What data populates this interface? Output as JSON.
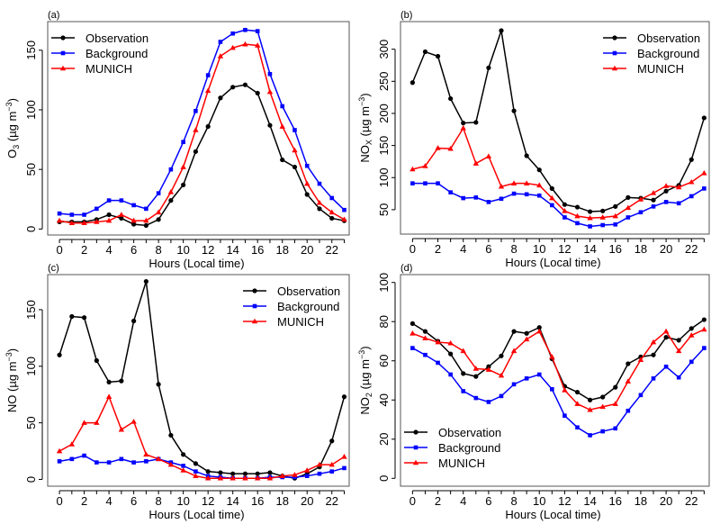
{
  "chart_data": [
    {
      "type": "line",
      "panel_label": "(a)",
      "xlabel": "Hours (Local time)",
      "ylabel": {
        "base": "O",
        "sub": "3",
        "unit": " (µg m",
        "exp": "−3",
        "close": ")"
      },
      "x": [
        0,
        1,
        2,
        3,
        4,
        5,
        6,
        7,
        8,
        9,
        10,
        11,
        12,
        13,
        14,
        15,
        16,
        17,
        18,
        19,
        20,
        21,
        22,
        23
      ],
      "x_tick_labels": [
        0,
        2,
        4,
        6,
        8,
        10,
        12,
        14,
        16,
        18,
        20,
        22
      ],
      "y_ticks": [
        0,
        50,
        100,
        150
      ],
      "xlim": [
        -0.95,
        23.4
      ],
      "ylim": [
        -5,
        174
      ],
      "legend_position": "top-left",
      "series": [
        {
          "name": "Observation",
          "color": "#000000",
          "marker": "circle",
          "values": [
            6,
            6,
            6,
            8,
            12,
            9,
            4,
            3,
            8,
            24,
            37,
            65,
            86,
            110,
            119,
            121,
            114,
            87,
            58,
            52,
            29,
            17,
            9,
            7
          ]
        },
        {
          "name": "Background",
          "color": "#0000ff",
          "marker": "square",
          "values": [
            13,
            12,
            12,
            17,
            24,
            24,
            20,
            17,
            30,
            50,
            73,
            99,
            129,
            157,
            164,
            167,
            166,
            130,
            103,
            83,
            53,
            38,
            26,
            16
          ]
        },
        {
          "name": "MUNICH",
          "color": "#ff0000",
          "marker": "triangle",
          "values": [
            7,
            5,
            5,
            6,
            7,
            12,
            7,
            7,
            14,
            31,
            52,
            83,
            116,
            145,
            152,
            155,
            154,
            115,
            86,
            66,
            38,
            22,
            14,
            8
          ]
        }
      ]
    },
    {
      "type": "line",
      "panel_label": "(b)",
      "xlabel": "Hours (Local time)",
      "ylabel": {
        "base": "NO",
        "sub": "X",
        "unit": " (µg m",
        "exp": "−3",
        "close": ")"
      },
      "x": [
        0,
        1,
        2,
        3,
        4,
        5,
        6,
        7,
        8,
        9,
        10,
        11,
        12,
        13,
        14,
        15,
        16,
        17,
        18,
        19,
        20,
        21,
        22,
        23
      ],
      "x_tick_labels": [
        0,
        2,
        4,
        6,
        8,
        10,
        12,
        14,
        16,
        18,
        20,
        22
      ],
      "y_ticks": [
        50,
        100,
        150,
        200,
        250,
        300
      ],
      "xlim": [
        -0.95,
        23.4
      ],
      "ylim": [
        12,
        343
      ],
      "legend_position": "top-right",
      "series": [
        {
          "name": "Observation",
          "color": "#000000",
          "marker": "circle",
          "values": [
            248,
            296,
            289,
            223,
            185,
            186,
            271,
            329,
            204,
            134,
            112,
            83,
            58,
            54,
            47,
            48,
            55,
            69,
            68,
            65,
            79,
            88,
            128,
            193
          ]
        },
        {
          "name": "Background",
          "color": "#0000ff",
          "marker": "square",
          "values": [
            91,
            91,
            91,
            77,
            68,
            69,
            62,
            67,
            75,
            74,
            72,
            57,
            38,
            29,
            24,
            26,
            27,
            38,
            46,
            55,
            62,
            60,
            71,
            83
          ]
        },
        {
          "name": "MUNICH",
          "color": "#ff0000",
          "marker": "triangle",
          "values": [
            113,
            118,
            146,
            145,
            177,
            122,
            133,
            86,
            91,
            91,
            88,
            68,
            48,
            40,
            37,
            38,
            40,
            53,
            66,
            76,
            87,
            85,
            93,
            107
          ]
        }
      ]
    },
    {
      "type": "line",
      "panel_label": "(c)",
      "xlabel": "Hours (Local time)",
      "ylabel": {
        "base": "NO",
        "sub": "",
        "unit": " (µg m",
        "exp": "−3",
        "close": ")"
      },
      "x": [
        0,
        1,
        2,
        3,
        4,
        5,
        6,
        7,
        8,
        9,
        10,
        11,
        12,
        13,
        14,
        15,
        16,
        17,
        18,
        19,
        20,
        21,
        22,
        23
      ],
      "x_tick_labels": [
        0,
        2,
        4,
        6,
        8,
        10,
        12,
        14,
        16,
        18,
        20,
        22
      ],
      "y_ticks": [
        0,
        50,
        100,
        150
      ],
      "xlim": [
        -0.95,
        23.4
      ],
      "ylim": [
        -6,
        181
      ],
      "legend_position": "top-right",
      "series": [
        {
          "name": "Observation",
          "color": "#000000",
          "marker": "circle",
          "values": [
            110,
            144,
            143,
            105,
            86,
            87,
            140,
            175,
            84,
            39,
            22,
            14,
            7,
            6,
            5,
            5,
            5,
            6,
            3,
            1,
            5,
            11,
            34,
            73
          ]
        },
        {
          "name": "Background",
          "color": "#0000ff",
          "marker": "square",
          "values": [
            16,
            18,
            21,
            15,
            15,
            18,
            15,
            16,
            18,
            15,
            12,
            7,
            3,
            2,
            1,
            1,
            1,
            2,
            2,
            2,
            3,
            5,
            7,
            10
          ]
        },
        {
          "name": "MUNICH",
          "color": "#ff0000",
          "marker": "triangle",
          "values": [
            25,
            31,
            50,
            50,
            73,
            44,
            51,
            22,
            18,
            13,
            8,
            3,
            1,
            1,
            1,
            1,
            1,
            1,
            3,
            4,
            8,
            13,
            13,
            20
          ]
        }
      ]
    },
    {
      "type": "line",
      "panel_label": "(d)",
      "xlabel": "Hours (Local time)",
      "ylabel": {
        "base": "NO",
        "sub": "2",
        "unit": " (µg m",
        "exp": "−3",
        "close": ")"
      },
      "x": [
        0,
        1,
        2,
        3,
        4,
        5,
        6,
        7,
        8,
        9,
        10,
        11,
        12,
        13,
        14,
        15,
        16,
        17,
        18,
        19,
        20,
        21,
        22,
        23
      ],
      "x_tick_labels": [
        0,
        2,
        4,
        6,
        8,
        10,
        12,
        14,
        16,
        18,
        20,
        22
      ],
      "y_ticks": [
        0,
        20,
        40,
        60,
        80,
        100
      ],
      "xlim": [
        -0.95,
        23.4
      ],
      "ylim": [
        -4,
        104
      ],
      "legend_position": "bottom-left",
      "series": [
        {
          "name": "Observation",
          "color": "#000000",
          "marker": "circle",
          "values": [
            79,
            75,
            70,
            63.5,
            53.5,
            52,
            57,
            62.5,
            75,
            74,
            77,
            61,
            47,
            44,
            40,
            41.5,
            46.5,
            58.5,
            62,
            63,
            72,
            70.5,
            76.5,
            81
          ]
        },
        {
          "name": "Background",
          "color": "#0000ff",
          "marker": "square",
          "values": [
            66.5,
            63,
            59,
            53,
            44.5,
            41,
            39,
            42,
            48,
            51,
            53,
            45.5,
            32,
            26,
            22,
            24,
            25.5,
            34.5,
            42.5,
            51,
            57,
            51.5,
            59.5,
            66.5
          ]
        },
        {
          "name": "MUNICH",
          "color": "#ff0000",
          "marker": "triangle",
          "values": [
            74,
            71.5,
            69.5,
            69,
            65,
            56,
            55.5,
            52.5,
            65,
            71,
            75,
            62,
            45,
            38,
            35,
            36.5,
            38,
            49.5,
            60.5,
            69.5,
            75,
            65,
            73,
            76
          ]
        }
      ]
    }
  ]
}
